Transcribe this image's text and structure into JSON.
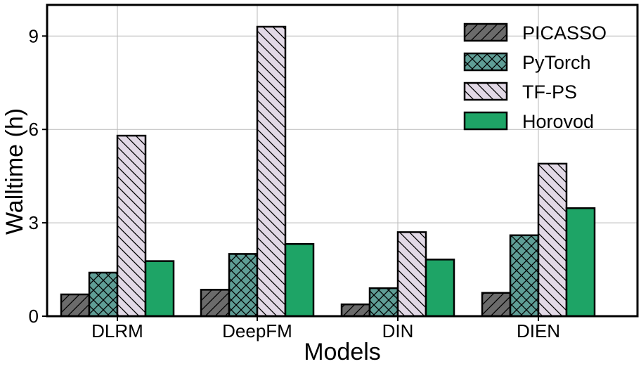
{
  "chart_data": {
    "type": "bar",
    "title": "",
    "xlabel": "Models",
    "ylabel": "Walltime (h)",
    "categories": [
      "DLRM",
      "DeepFM",
      "DIN",
      "DIEN"
    ],
    "yticks": [
      "0",
      "3",
      "6",
      "9"
    ],
    "ylim": [
      0,
      10
    ],
    "grid": true,
    "legend_position": "top-right",
    "series": [
      {
        "name": "PICASSO",
        "values": [
          0.7,
          0.85,
          0.38,
          0.75
        ],
        "color": "#6b6b6b",
        "hatch": "forward-diagonal"
      },
      {
        "name": "PyTorch",
        "values": [
          1.4,
          2.0,
          0.9,
          2.6
        ],
        "color": "#5f9e96",
        "hatch": "cross"
      },
      {
        "name": "TF-PS",
        "values": [
          5.8,
          9.3,
          2.7,
          4.9
        ],
        "color": "#e2d9e6",
        "hatch": "back-diagonal"
      },
      {
        "name": "Horovod",
        "values": [
          1.77,
          2.32,
          1.82,
          3.47
        ],
        "color": "#1ea466",
        "hatch": "none"
      }
    ]
  }
}
